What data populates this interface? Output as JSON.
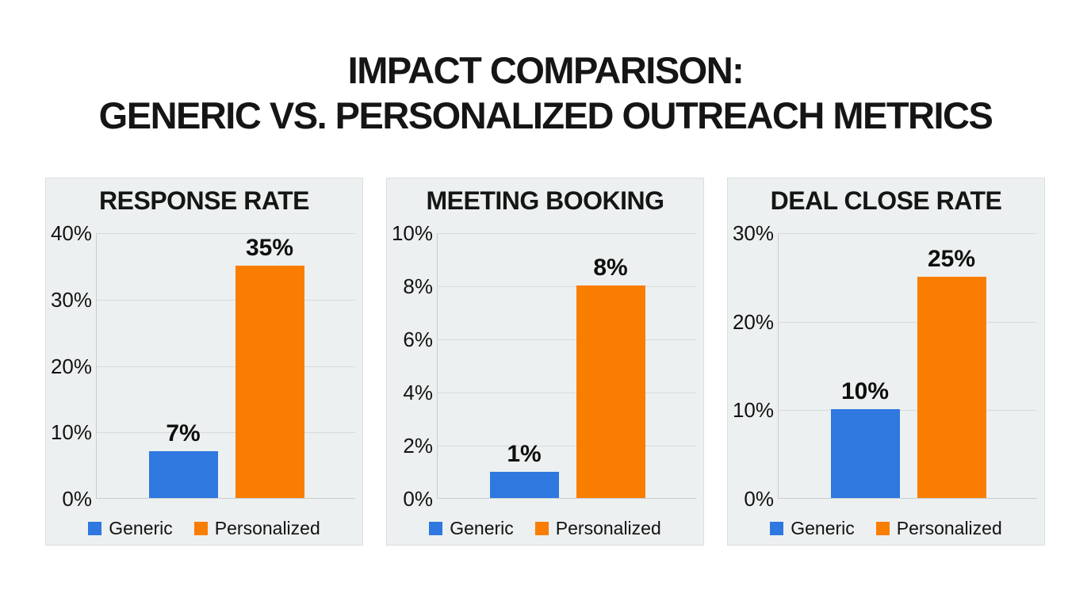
{
  "title": {
    "line1": "IMPACT COMPARISON:",
    "line2": "GENERIC VS. PERSONALIZED OUTREACH METRICS"
  },
  "colors": {
    "generic_blue": "#2e78e0",
    "personalized_orange": "#f97d00",
    "panel_background": "#edf0f0",
    "gridline": "#d6dbdb",
    "axis_line": "#c8cdce",
    "text_black": "#121212",
    "page_background": "#ffffff"
  },
  "legend": {
    "items": [
      {
        "label": "Generic",
        "color_key": "generic_blue"
      },
      {
        "label": "Personalized",
        "color_key": "personalized_orange"
      }
    ]
  },
  "chart_data": [
    {
      "type": "bar",
      "title": "RESPONSE RATE",
      "categories": [
        "Generic",
        "Personalized"
      ],
      "values": [
        7,
        35
      ],
      "value_labels": [
        "7%",
        "35%"
      ],
      "ylim": [
        0,
        40
      ],
      "yticks": [
        0,
        10,
        20,
        30,
        40
      ],
      "ytick_labels": [
        "0%",
        "10%",
        "20%",
        "30%",
        "40%"
      ],
      "grid": true,
      "legend_position": "bottom"
    },
    {
      "type": "bar",
      "title": "MEETING BOOKING",
      "categories": [
        "Generic",
        "Personalized"
      ],
      "values": [
        1,
        8
      ],
      "value_labels": [
        "1%",
        "8%"
      ],
      "ylim": [
        0,
        10
      ],
      "yticks": [
        0,
        2,
        4,
        6,
        8,
        10
      ],
      "ytick_labels": [
        "0%",
        "2%",
        "4%",
        "6%",
        "8%",
        "10%"
      ],
      "grid": true,
      "legend_position": "bottom"
    },
    {
      "type": "bar",
      "title": "DEAL CLOSE RATE",
      "categories": [
        "Generic",
        "Personalized"
      ],
      "values": [
        10,
        25
      ],
      "value_labels": [
        "10%",
        "25%"
      ],
      "ylim": [
        0,
        30
      ],
      "yticks": [
        0,
        10,
        20,
        30
      ],
      "ytick_labels": [
        "0%",
        "10%",
        "20%",
        "30%"
      ],
      "grid": true,
      "legend_position": "bottom"
    }
  ]
}
